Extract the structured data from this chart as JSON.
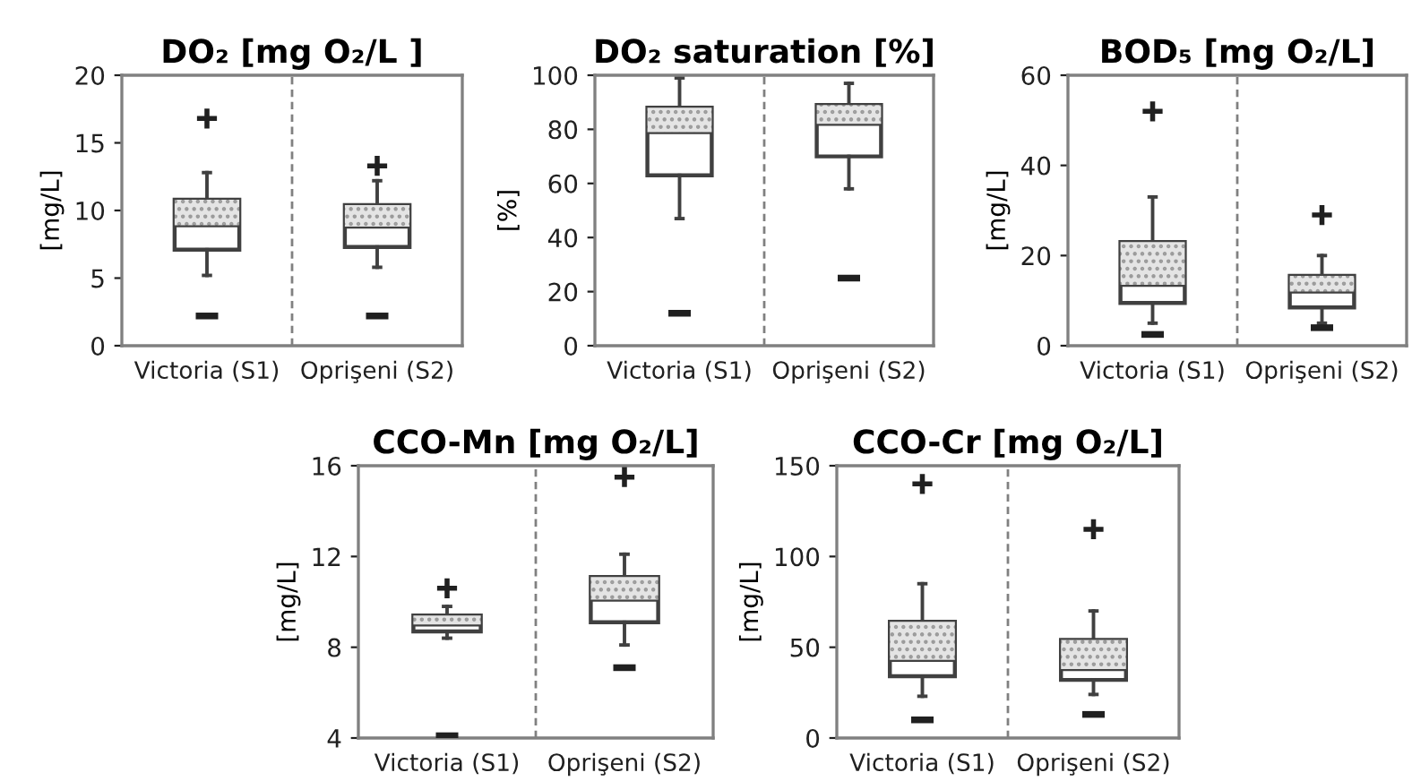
{
  "chart_data": [
    {
      "type": "box",
      "title": "DO₂ [mg O₂/L ]",
      "ylabel": "[mg/L]",
      "categories": [
        "Victoria (S1)",
        "Oprişeni (S2)"
      ],
      "ylim": [
        0,
        20
      ],
      "yticks": [
        0,
        5,
        10,
        15,
        20
      ],
      "grid": false,
      "boxes": [
        {
          "low": 5.2,
          "q1": 7.1,
          "median": 8.9,
          "q3": 10.8,
          "high": 12.8,
          "outliers": [
            16.8,
            2.2
          ]
        },
        {
          "low": 5.8,
          "q1": 7.3,
          "median": 8.8,
          "q3": 10.4,
          "high": 12.2,
          "outliers": [
            13.3,
            2.2
          ]
        }
      ]
    },
    {
      "type": "box",
      "title": "DO₂ saturation [%]",
      "ylabel": "[%]",
      "categories": [
        "Victoria (S1)",
        "Oprişeni (S2)"
      ],
      "ylim": [
        0,
        100
      ],
      "yticks": [
        0,
        20,
        40,
        60,
        80,
        100
      ],
      "grid": false,
      "boxes": [
        {
          "low": 47,
          "q1": 63,
          "median": 79,
          "q3": 88,
          "high": 99,
          "outliers": [
            12
          ]
        },
        {
          "low": 58,
          "q1": 70,
          "median": 82,
          "q3": 89,
          "high": 97,
          "outliers": [
            25
          ]
        }
      ]
    },
    {
      "type": "box",
      "title": "BOD₅ [mg O₂/L]",
      "ylabel": "[mg/L]",
      "categories": [
        "Victoria (S1)",
        "Oprişeni (S2)"
      ],
      "ylim": [
        0,
        60
      ],
      "yticks": [
        0,
        20,
        40,
        60
      ],
      "grid": false,
      "boxes": [
        {
          "low": 5,
          "q1": 9.5,
          "median": 13.5,
          "q3": 23,
          "high": 33,
          "outliers": [
            52,
            2.5
          ]
        },
        {
          "low": 5,
          "q1": 8.5,
          "median": 12,
          "q3": 15.5,
          "high": 20,
          "outliers": [
            29,
            4
          ]
        }
      ]
    },
    {
      "type": "box",
      "title": "CCO-Mn [mg O₂/L]",
      "ylabel": "[mg/L]",
      "categories": [
        "Victoria (S1)",
        "Oprişeni (S2)"
      ],
      "ylim": [
        4,
        16
      ],
      "yticks": [
        4,
        8,
        12,
        16
      ],
      "grid": false,
      "boxes": [
        {
          "low": 8.4,
          "q1": 8.7,
          "median": 9.0,
          "q3": 9.4,
          "high": 9.8,
          "outliers": [
            10.6,
            4.1
          ]
        },
        {
          "low": 8.1,
          "q1": 9.1,
          "median": 10.1,
          "q3": 11.1,
          "high": 12.1,
          "outliers": [
            15.5,
            7.1
          ]
        }
      ]
    },
    {
      "type": "box",
      "title": "CCO-Cr [mg O₂/L]",
      "ylabel": "[mg/L]",
      "categories": [
        "Victoria (S1)",
        "Oprişeni (S2)"
      ],
      "ylim": [
        0,
        150
      ],
      "yticks": [
        0,
        50,
        100,
        150
      ],
      "grid": false,
      "boxes": [
        {
          "low": 23,
          "q1": 34,
          "median": 43,
          "q3": 64,
          "high": 85,
          "outliers": [
            140,
            10
          ]
        },
        {
          "low": 24,
          "q1": 32,
          "median": 38,
          "q3": 54,
          "high": 70,
          "outliers": [
            115,
            13
          ]
        }
      ]
    }
  ]
}
